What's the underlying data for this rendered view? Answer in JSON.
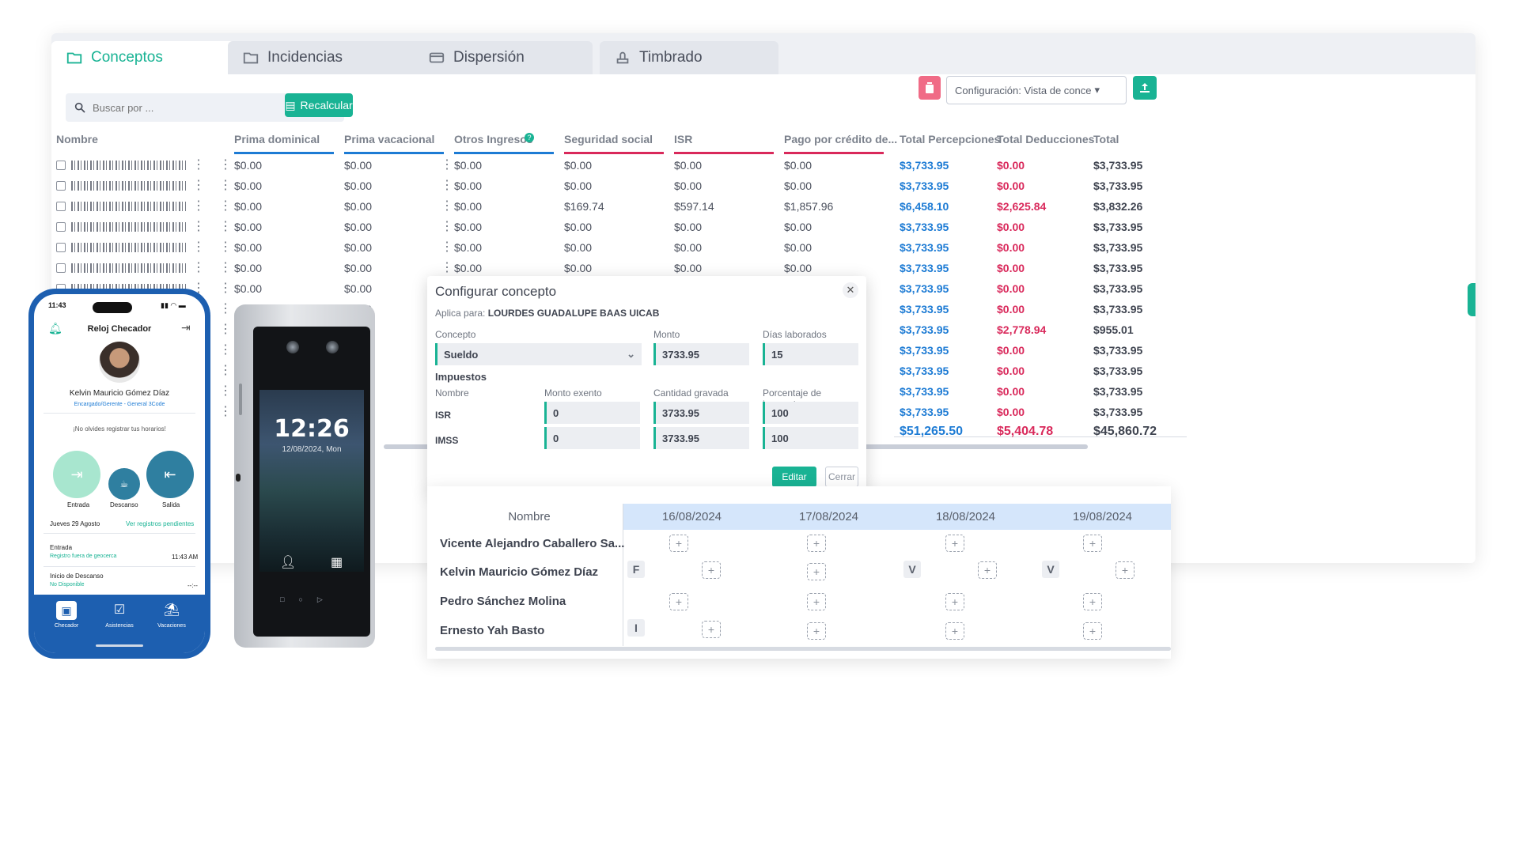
{
  "tabs": [
    {
      "label": "Conceptos",
      "active": true
    },
    {
      "label": "Incidencias",
      "active": false
    },
    {
      "label": "Dispersión",
      "active": false
    },
    {
      "label": "Timbrado",
      "active": false
    }
  ],
  "toolbar": {
    "search_placeholder": "Buscar por ...",
    "recalcular_label": "Recalcular",
    "config_select_value": "Configuración: Vista de conce"
  },
  "table": {
    "columns": [
      "Nombre",
      "Prima dominical",
      "Prima vacacional",
      "Otros Ingresos",
      "Seguridad social",
      "ISR",
      "Pago por crédito de...",
      "Total Percepciones",
      "Total Deducciones",
      "Total"
    ],
    "rows": [
      [
        "$0.00",
        "$0.00",
        "$0.00",
        "$0.00",
        "$0.00",
        "$0.00",
        "$3,733.95",
        "$0.00",
        "$3,733.95"
      ],
      [
        "$0.00",
        "$0.00",
        "$0.00",
        "$0.00",
        "$0.00",
        "$0.00",
        "$3,733.95",
        "$0.00",
        "$3,733.95"
      ],
      [
        "$0.00",
        "$0.00",
        "$0.00",
        "$169.74",
        "$597.14",
        "$1,857.96",
        "$6,458.10",
        "$2,625.84",
        "$3,832.26"
      ],
      [
        "$0.00",
        "$0.00",
        "$0.00",
        "$0.00",
        "$0.00",
        "$0.00",
        "$3,733.95",
        "$0.00",
        "$3,733.95"
      ],
      [
        "$0.00",
        "$0.00",
        "$0.00",
        "$0.00",
        "$0.00",
        "$0.00",
        "$3,733.95",
        "$0.00",
        "$3,733.95"
      ],
      [
        "$0.00",
        "$0.00",
        "$0.00",
        "$0.00",
        "$0.00",
        "$0.00",
        "$3,733.95",
        "$0.00",
        "$3,733.95"
      ],
      [
        "$0.00",
        "$0.00",
        "",
        "",
        "",
        "",
        "$3,733.95",
        "$0.00",
        "$3,733.95"
      ],
      [
        "",
        "$0.00",
        "",
        "",
        "",
        "",
        "$3,733.95",
        "$0.00",
        "$3,733.95"
      ],
      [
        "",
        "",
        "",
        "",
        "",
        "",
        "$3,733.95",
        "$2,778.94",
        "$955.01"
      ],
      [
        "",
        "",
        "",
        "",
        "",
        "",
        "$3,733.95",
        "$0.00",
        "$3,733.95"
      ],
      [
        "",
        "",
        "",
        "",
        "",
        "",
        "$3,733.95",
        "$0.00",
        "$3,733.95"
      ],
      [
        "",
        "",
        "",
        "",
        "",
        "",
        "$3,733.95",
        "$0.00",
        "$3,733.95"
      ],
      [
        "",
        "",
        "",
        "",
        "",
        "",
        "$3,733.95",
        "$0.00",
        "$3,733.95"
      ]
    ],
    "totals": {
      "percepciones": "$51,265.50",
      "deducciones": "$5,404.78",
      "total": "$45,860.72"
    }
  },
  "modal": {
    "title": "Configurar concepto",
    "aplica_label": "Aplica para:",
    "aplica_value": "LOURDES GUADALUPE BAAS UICAB",
    "concepto_label": "Concepto",
    "concepto_value": "Sueldo",
    "monto_label": "Monto",
    "monto_value": "3733.95",
    "dias_label": "Días laborados",
    "dias_value": "15",
    "impuestos_label": "Impuestos",
    "headers": [
      "Nombre",
      "Monto exento",
      "Cantidad gravada",
      "Porcentaje de impuestos"
    ],
    "rows": [
      {
        "name": "ISR",
        "exento": "0",
        "gravada": "3733.95",
        "porcentaje": "100"
      },
      {
        "name": "IMSS",
        "exento": "0",
        "gravada": "3733.95",
        "porcentaje": "100"
      }
    ],
    "edit_label": "Editar",
    "close_label": "Cerrar"
  },
  "schedule": {
    "name_header": "Nombre",
    "dates": [
      "16/08/2024",
      "17/08/2024",
      "18/08/2024",
      "19/08/2024"
    ],
    "employees": [
      "Vicente Alejandro Caballero Sa...",
      "Kelvin Mauricio Gómez Díaz",
      "Pedro Sánchez Molina",
      "Ernesto Yah Basto"
    ],
    "marks": {
      "kelvin_1": "F",
      "kelvin_3": "V",
      "kelvin_4": "V",
      "ernesto_1": "I"
    }
  },
  "phone": {
    "time": "11:43",
    "title": "Reloj Checador",
    "user_name": "Kelvin Mauricio Gómez Díaz",
    "user_role": "Encargado/Gerente - General 3Code",
    "reminder": "¡No olvides registrar tus horarios!",
    "actions": [
      "Entrada",
      "Descanso",
      "Salida"
    ],
    "date_label": "Jueves  29  Agosto",
    "pending_link": "Ver registros pendientes",
    "entry1_title": "Entrada",
    "entry1_sub": "Registro fuera de geocerca",
    "entry1_time": "11:43 AM",
    "entry2_title": "Inicio de Descanso",
    "entry2_sub": "No Disponible",
    "entry2_time": "--:--",
    "nav": [
      "Checador",
      "Asistencias",
      "Vacaciones"
    ]
  },
  "device": {
    "time": "12:26",
    "date": "12/08/2024, Mon"
  },
  "colors": {
    "accent": "#19b394",
    "blue": "#1d7bd4",
    "red": "#d9295b",
    "phone": "#1d5fb0"
  }
}
